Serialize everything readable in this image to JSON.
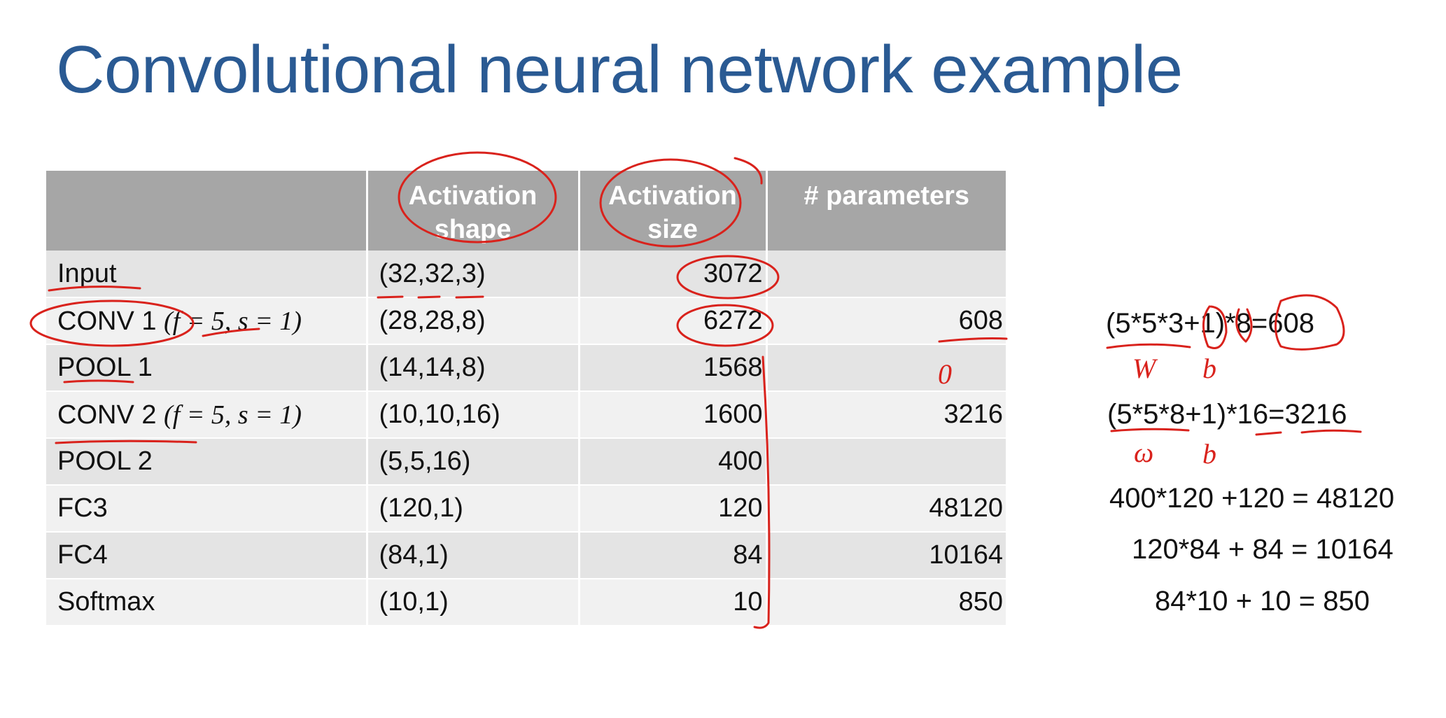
{
  "title": "Convolutional neural network example",
  "table": {
    "headers": [
      "",
      "Activation shape",
      "Activation size",
      "# parameters"
    ],
    "rows": [
      {
        "layer": "Input",
        "hyper": "",
        "shape": "(32,32,3)",
        "size": "3072",
        "params": ""
      },
      {
        "layer": "CONV 1",
        "hyper": "(f = 5, s = 1)",
        "shape": "(28,28,8)",
        "size": "6272",
        "params": "608"
      },
      {
        "layer": "POOL 1",
        "hyper": "",
        "shape": "(14,14,8)",
        "size": "1568",
        "params": ""
      },
      {
        "layer": "CONV 2",
        "hyper": "(f = 5, s = 1)",
        "shape": "(10,10,16)",
        "size": "1600",
        "params": "3216"
      },
      {
        "layer": "POOL 2",
        "hyper": "",
        "shape": "(5,5,16)",
        "size": "400",
        "params": ""
      },
      {
        "layer": "FC3",
        "hyper": "",
        "shape": "(120,1)",
        "size": "120",
        "params": "48120"
      },
      {
        "layer": "FC4",
        "hyper": "",
        "shape": "(84,1)",
        "size": "84",
        "params": "10164"
      },
      {
        "layer": "Softmax",
        "hyper": "",
        "shape": "(10,1)",
        "size": "10",
        "params": "850"
      }
    ]
  },
  "equations": [
    "(5*5*3+1)*8=608",
    "(5*5*8+1)*16=3216",
    "400*120 +120 = 48120",
    "120*84 + 84 = 10164",
    "84*10 + 10 = 850"
  ],
  "handwriting": {
    "pool1_params": "0",
    "weights_label": "W",
    "bias_label": "b",
    "weights_label_2": "ω",
    "bias_label_2": "b"
  },
  "colors": {
    "title": "#2a5a93",
    "header_bg": "#a6a6a6",
    "row_odd": "#e4e4e4",
    "row_even": "#f1f1f1",
    "ink": "#d9221c"
  }
}
